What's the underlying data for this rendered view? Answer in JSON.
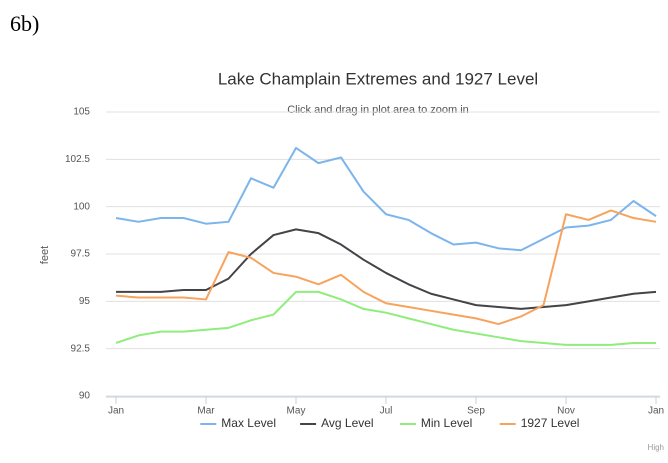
{
  "figure_label": "6b)",
  "chart_data": {
    "type": "line",
    "title": "Lake Champlain Extremes and 1927 Level",
    "subtitle": "Click and drag in plot area to zoom in",
    "y_label": "feet",
    "credit": "High",
    "x": [
      0,
      0.5,
      1,
      1.5,
      2,
      2.5,
      3,
      3.5,
      4,
      4.5,
      5,
      5.5,
      6,
      6.5,
      7,
      7.5,
      8,
      8.5,
      9,
      9.5,
      10,
      10.5,
      11,
      11.5,
      12
    ],
    "xlim": [
      0,
      12
    ],
    "xticks": [
      {
        "value": 0,
        "label": "Jan"
      },
      {
        "value": 2,
        "label": "Mar"
      },
      {
        "value": 4,
        "label": "May"
      },
      {
        "value": 6,
        "label": "Jul"
      },
      {
        "value": 8,
        "label": "Sep"
      },
      {
        "value": 10,
        "label": "Nov"
      },
      {
        "value": 12,
        "label": "Jan"
      }
    ],
    "ylim": [
      90,
      105
    ],
    "yticks": [
      90,
      92.5,
      95,
      97.5,
      100,
      102.5,
      105
    ],
    "grid": true,
    "legend": "bottom",
    "series": [
      {
        "name": "Max Level",
        "color": "#7cb5ec",
        "values": [
          99.4,
          99.2,
          99.4,
          99.4,
          99.1,
          99.2,
          101.5,
          101.0,
          103.1,
          102.3,
          102.6,
          100.8,
          99.6,
          99.3,
          98.6,
          98.0,
          98.1,
          97.8,
          97.7,
          98.3,
          98.9,
          99.0,
          99.3,
          100.3,
          99.5
        ]
      },
      {
        "name": "Avg Level",
        "color": "#434348",
        "values": [
          95.5,
          95.5,
          95.5,
          95.6,
          95.6,
          96.2,
          97.5,
          98.5,
          98.8,
          98.6,
          98.0,
          97.2,
          96.5,
          95.9,
          95.4,
          95.1,
          94.8,
          94.7,
          94.6,
          94.7,
          94.8,
          95.0,
          95.2,
          95.4,
          95.5
        ]
      },
      {
        "name": "Min Level",
        "color": "#90ed7d",
        "values": [
          92.8,
          93.2,
          93.4,
          93.4,
          93.5,
          93.6,
          94.0,
          94.3,
          95.5,
          95.5,
          95.1,
          94.6,
          94.4,
          94.1,
          93.8,
          93.5,
          93.3,
          93.1,
          92.9,
          92.8,
          92.7,
          92.7,
          92.7,
          92.8,
          92.8
        ]
      },
      {
        "name": "1927 Level",
        "color": "#f7a35c",
        "values": [
          95.3,
          95.2,
          95.2,
          95.2,
          95.1,
          97.6,
          97.3,
          96.5,
          96.3,
          95.9,
          96.4,
          95.5,
          94.9,
          94.7,
          94.5,
          94.3,
          94.1,
          93.8,
          94.2,
          94.8,
          99.6,
          99.3,
          99.8,
          99.4,
          99.2
        ]
      }
    ]
  }
}
